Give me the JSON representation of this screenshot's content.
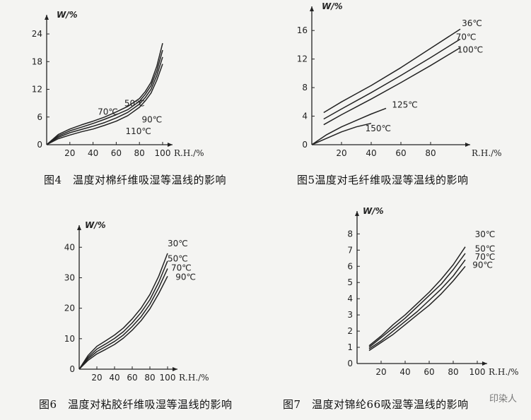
{
  "captions": {
    "fig4": "图4　温度对棉纤维吸湿等温线的影响",
    "fig5": "图5温度对毛纤维吸湿等温线的影响",
    "fig6": "图6　温度对粘胶纤维吸湿等温线的影响",
    "fig7": "图7　温度对锦纶66吸湿等温线的影响"
  },
  "watermark": "印染人",
  "colors": {
    "ink": "#222222",
    "background": "#f4f4f2"
  },
  "chart_data": [
    {
      "id": "fig4",
      "type": "line",
      "ylabel": "W/%",
      "xlabel": "R.H./%",
      "xlim": [
        0,
        100
      ],
      "ylim": [
        0,
        26
      ],
      "xticks": [
        0,
        20,
        40,
        60,
        80,
        100
      ],
      "yticks": [
        0,
        6,
        12,
        18,
        24
      ],
      "xtick_labels": [
        "0",
        "20",
        "40",
        "60",
        "80",
        "100"
      ],
      "ytick_labels": [
        "0",
        "6",
        "12",
        "18",
        "24"
      ],
      "series": [
        {
          "name": "50℃",
          "x": [
            0,
            10,
            20,
            30,
            40,
            50,
            60,
            70,
            80,
            85,
            90,
            95,
            100
          ],
          "y": [
            0,
            2.2,
            3.4,
            4.3,
            5.1,
            6.0,
            7.1,
            8.3,
            10.0,
            11.5,
            13.5,
            17.0,
            22.0
          ]
        },
        {
          "name": "70℃",
          "x": [
            0,
            10,
            20,
            30,
            40,
            50,
            60,
            70,
            80,
            85,
            90,
            95,
            100
          ],
          "y": [
            0,
            1.9,
            3.0,
            3.8,
            4.6,
            5.5,
            6.5,
            7.6,
            9.4,
            10.9,
            12.8,
            16.0,
            20.5
          ]
        },
        {
          "name": "90℃",
          "x": [
            0,
            10,
            20,
            30,
            40,
            50,
            60,
            70,
            80,
            85,
            90,
            95,
            100
          ],
          "y": [
            0,
            1.6,
            2.6,
            3.3,
            4.0,
            4.8,
            5.8,
            7.0,
            8.8,
            10.2,
            12.0,
            15.0,
            19.0
          ]
        },
        {
          "name": "110℃",
          "x": [
            0,
            10,
            20,
            30,
            40,
            50,
            60,
            70,
            80,
            85,
            90,
            95,
            100
          ],
          "y": [
            0,
            1.3,
            2.1,
            2.8,
            3.4,
            4.2,
            5.1,
            6.3,
            8.1,
            9.5,
            11.2,
            14.0,
            17.5
          ]
        }
      ],
      "labels": [
        {
          "text": "70℃",
          "x": 44,
          "y": 6.5
        },
        {
          "text": "50℃",
          "x": 67,
          "y": 8.3
        },
        {
          "text": "90℃",
          "x": 82,
          "y": 4.8
        },
        {
          "text": "110℃",
          "x": 68,
          "y": 2.3
        }
      ]
    },
    {
      "id": "fig5",
      "type": "line",
      "ylabel": "W/%",
      "xlabel": "R.H./%",
      "xlim": [
        0,
        100
      ],
      "ylim": [
        0,
        18
      ],
      "xticks": [
        0,
        20,
        40,
        60,
        80
      ],
      "yticks": [
        0,
        4,
        8,
        12,
        16
      ],
      "xtick_labels": [
        "0",
        "20",
        "40",
        "60",
        "80"
      ],
      "ytick_labels": [
        "0",
        "4",
        "8",
        "12",
        "16"
      ],
      "series": [
        {
          "name": "36℃",
          "x": [
            8,
            20,
            40,
            60,
            80,
            100
          ],
          "y": [
            4.5,
            6.0,
            8.3,
            10.8,
            13.5,
            16.2
          ]
        },
        {
          "name": "70℃",
          "x": [
            8,
            20,
            40,
            60,
            80,
            100
          ],
          "y": [
            3.6,
            5.0,
            7.3,
            9.7,
            12.2,
            14.8
          ]
        },
        {
          "name": "100℃",
          "x": [
            8,
            20,
            40,
            60,
            80,
            100
          ],
          "y": [
            2.8,
            4.2,
            6.4,
            8.7,
            11.1,
            13.6
          ]
        },
        {
          "name": "125℃",
          "x": [
            0,
            10,
            20,
            30,
            40,
            50
          ],
          "y": [
            0,
            1.4,
            2.5,
            3.4,
            4.3,
            5.1
          ]
        },
        {
          "name": "150℃",
          "x": [
            0,
            10,
            20,
            30,
            40
          ],
          "y": [
            0,
            0.9,
            1.8,
            2.5,
            3.0
          ]
        }
      ],
      "labels": [
        {
          "text": "36℃",
          "x": 101,
          "y": 16.6
        },
        {
          "text": "70℃",
          "x": 97,
          "y": 14.7
        },
        {
          "text": "100℃",
          "x": 98,
          "y": 12.9
        },
        {
          "text": "125℃",
          "x": 54,
          "y": 5.2
        },
        {
          "text": "150℃",
          "x": 36,
          "y": 1.9
        }
      ]
    },
    {
      "id": "fig6",
      "type": "line",
      "ylabel": "W/%",
      "xlabel": "R.H./%",
      "xlim": [
        0,
        100
      ],
      "ylim": [
        0,
        44
      ],
      "xticks": [
        0,
        20,
        40,
        60,
        80,
        100
      ],
      "yticks": [
        0,
        10,
        20,
        30,
        40
      ],
      "xtick_labels": [
        "0",
        "20",
        "40",
        "60",
        "80",
        "100"
      ],
      "ytick_labels": [
        "0",
        "10",
        "20",
        "30",
        "40"
      ],
      "series": [
        {
          "name": "30℃",
          "x": [
            0,
            10,
            20,
            30,
            40,
            50,
            60,
            70,
            80,
            90,
            100
          ],
          "y": [
            0,
            4.5,
            7.5,
            9.3,
            11.2,
            13.5,
            16.5,
            20.0,
            24.5,
            30.5,
            38.0
          ]
        },
        {
          "name": "50℃",
          "x": [
            0,
            10,
            20,
            30,
            40,
            50,
            60,
            70,
            80,
            90,
            100
          ],
          "y": [
            0,
            3.9,
            6.6,
            8.3,
            10.1,
            12.3,
            15.2,
            18.6,
            22.8,
            28.5,
            35.5
          ]
        },
        {
          "name": "70℃",
          "x": [
            0,
            10,
            20,
            30,
            40,
            50,
            60,
            70,
            80,
            90,
            100
          ],
          "y": [
            0,
            3.4,
            5.8,
            7.4,
            9.1,
            11.2,
            14.0,
            17.2,
            21.3,
            26.7,
            33.0
          ]
        },
        {
          "name": "90℃",
          "x": [
            0,
            10,
            20,
            30,
            40,
            50,
            60,
            70,
            80,
            90,
            100
          ],
          "y": [
            0,
            2.9,
            5.0,
            6.5,
            8.1,
            10.2,
            12.8,
            15.9,
            19.8,
            24.8,
            30.5
          ]
        }
      ],
      "labels": [
        {
          "text": "30℃",
          "x": 100,
          "y": 40.3
        },
        {
          "text": "50℃",
          "x": 100,
          "y": 35.3
        },
        {
          "text": "70℃",
          "x": 104,
          "y": 32.3
        },
        {
          "text": "90℃",
          "x": 109,
          "y": 29.3
        }
      ]
    },
    {
      "id": "fig7",
      "type": "line",
      "ylabel": "W/%",
      "xlabel": "R.H./%",
      "xlim": [
        0,
        100
      ],
      "ylim": [
        0,
        8.8
      ],
      "xticks": [
        0,
        20,
        40,
        60,
        80,
        100
      ],
      "yticks": [
        0,
        1,
        2,
        3,
        4,
        5,
        6,
        7,
        8
      ],
      "xtick_labels": [
        "0",
        "20",
        "40",
        "60",
        "80",
        "100"
      ],
      "ytick_labels": [
        "0",
        "1",
        "2",
        "3",
        "4",
        "5",
        "6",
        "7",
        "8"
      ],
      "series": [
        {
          "name": "30℃",
          "x": [
            10,
            20,
            30,
            40,
            50,
            60,
            70,
            80,
            90
          ],
          "y": [
            1.1,
            1.7,
            2.4,
            3.0,
            3.7,
            4.4,
            5.2,
            6.1,
            7.2
          ]
        },
        {
          "name": "50℃",
          "x": [
            10,
            20,
            30,
            40,
            50,
            60,
            70,
            80,
            90
          ],
          "y": [
            1.0,
            1.6,
            2.2,
            2.8,
            3.5,
            4.2,
            4.9,
            5.8,
            6.8
          ]
        },
        {
          "name": "70℃",
          "x": [
            10,
            20,
            30,
            40,
            50,
            60,
            70,
            80,
            90
          ],
          "y": [
            0.9,
            1.4,
            2.0,
            2.6,
            3.2,
            3.9,
            4.6,
            5.4,
            6.4
          ]
        },
        {
          "name": "90℃",
          "x": [
            10,
            20,
            30,
            40,
            50,
            60,
            70,
            80,
            90
          ],
          "y": [
            0.8,
            1.3,
            1.8,
            2.4,
            3.0,
            3.6,
            4.3,
            5.1,
            6.0
          ]
        }
      ],
      "labels": [
        {
          "text": "30℃",
          "x": 98,
          "y": 7.8
        },
        {
          "text": "50℃",
          "x": 98,
          "y": 6.9
        },
        {
          "text": "70℃",
          "x": 98,
          "y": 6.4
        },
        {
          "text": "90℃",
          "x": 96,
          "y": 5.9
        }
      ]
    }
  ]
}
